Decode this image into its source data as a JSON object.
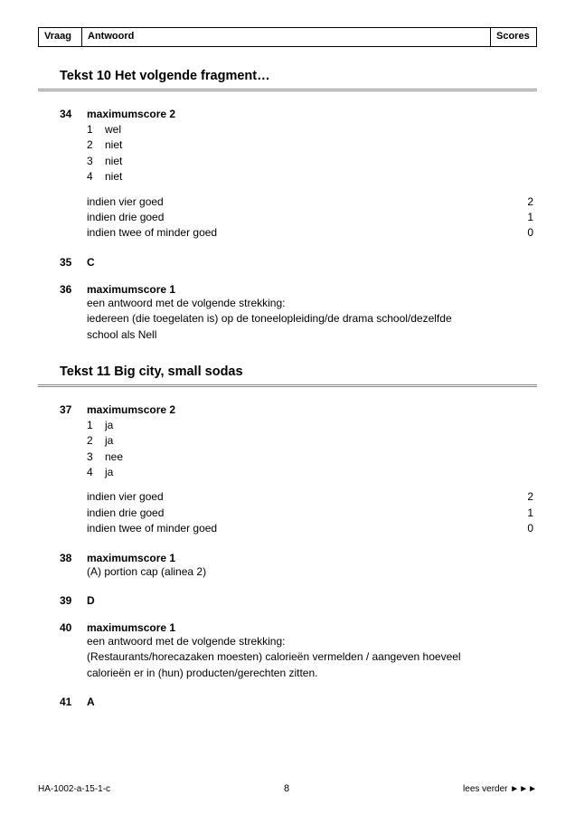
{
  "header": {
    "vraag": "Vraag",
    "antwoord": "Antwoord",
    "scores": "Scores"
  },
  "sections": [
    {
      "title": "Tekst 10  Het volgende fragment…"
    },
    {
      "title": "Tekst 11  Big city, small sodas"
    }
  ],
  "q34": {
    "num": "34",
    "max": "maximumscore 2",
    "items": [
      {
        "n": "1",
        "t": "wel"
      },
      {
        "n": "2",
        "t": "niet"
      },
      {
        "n": "3",
        "t": "niet"
      },
      {
        "n": "4",
        "t": "niet"
      }
    ],
    "scoring": [
      {
        "lbl": "indien vier goed",
        "val": "2"
      },
      {
        "lbl": "indien drie goed",
        "val": "1"
      },
      {
        "lbl": "indien twee of minder goed",
        "val": "0"
      }
    ]
  },
  "q35": {
    "num": "35",
    "letter": "C"
  },
  "q36": {
    "num": "36",
    "max": "maximumscore 1",
    "lines": [
      "een antwoord met de volgende strekking:",
      "iedereen (die toegelaten is) op de toneelopleiding/de drama school/dezelfde school als Nell"
    ]
  },
  "q37": {
    "num": "37",
    "max": "maximumscore 2",
    "items": [
      {
        "n": "1",
        "t": "ja"
      },
      {
        "n": "2",
        "t": "ja"
      },
      {
        "n": "3",
        "t": "nee"
      },
      {
        "n": "4",
        "t": "ja"
      }
    ],
    "scoring": [
      {
        "lbl": "indien vier goed",
        "val": "2"
      },
      {
        "lbl": "indien drie goed",
        "val": "1"
      },
      {
        "lbl": "indien twee of minder goed",
        "val": "0"
      }
    ]
  },
  "q38": {
    "num": "38",
    "max": "maximumscore 1",
    "line": "(A) portion cap (alinea 2)"
  },
  "q39": {
    "num": "39",
    "letter": "D"
  },
  "q40": {
    "num": "40",
    "max": "maximumscore 1",
    "lines": [
      "een antwoord met de volgende strekking:",
      "(Restaurants/horecazaken moesten) calorieën vermelden / aangeven hoeveel calorieën er in (hun) producten/gerechten zitten."
    ]
  },
  "q41": {
    "num": "41",
    "letter": "A"
  },
  "footer": {
    "left": "HA-1002-a-15-1-c",
    "mid": "8",
    "right": "lees verder ►►►"
  }
}
